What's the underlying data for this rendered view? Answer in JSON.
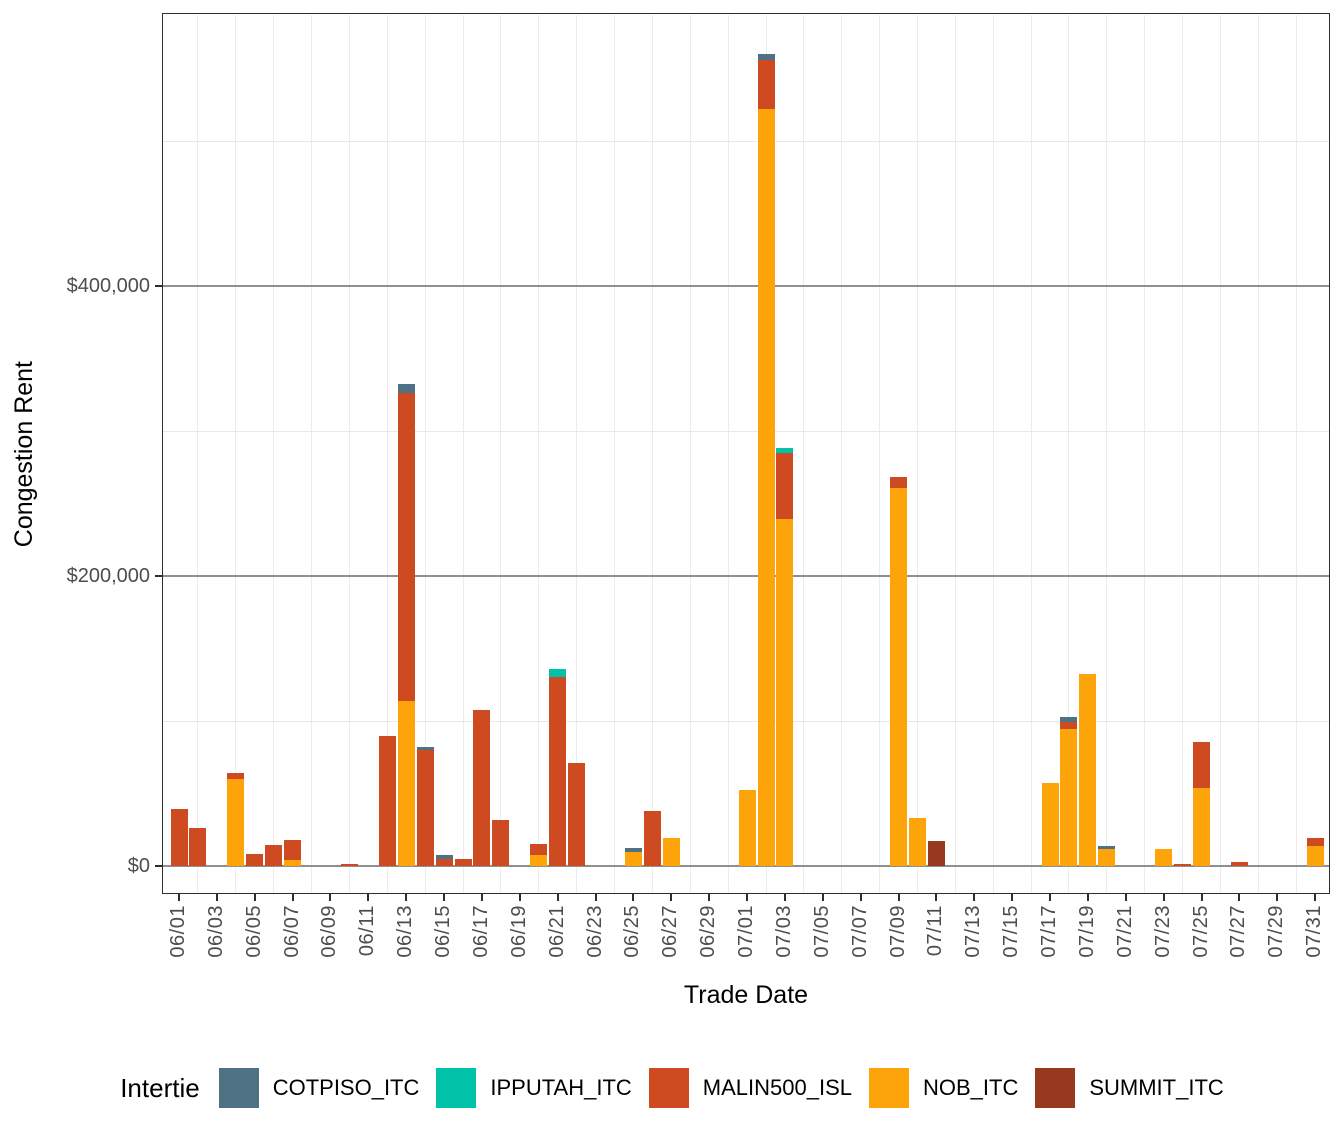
{
  "chart_data": {
    "type": "bar",
    "stacked": true,
    "xlabel": "Trade Date",
    "ylabel": "Congestion Rent",
    "legend_title": "Intertie",
    "legend_position": "bottom",
    "grid": true,
    "currency": "USD",
    "ylim": [
      0,
      587000
    ],
    "yticks": [
      {
        "value": 0,
        "label": "$0"
      },
      {
        "value": 200000,
        "label": "$200,000"
      },
      {
        "value": 400000,
        "label": "$400,000"
      }
    ],
    "y_minor_gridlines": [
      100000,
      300000,
      500000
    ],
    "series": [
      {
        "name": "COTPISO_ITC",
        "color": "#4E7284"
      },
      {
        "name": "IPPUTAH_ITC",
        "color": "#02C3A8"
      },
      {
        "name": "MALIN500_ISL",
        "color": "#CE4A21"
      },
      {
        "name": "NOB_ITC",
        "color": "#FDA40B"
      },
      {
        "name": "SUMMIT_ITC",
        "color": "#97391F"
      }
    ],
    "stack_order_bottom_to_top": [
      "SUMMIT_ITC",
      "NOB_ITC",
      "MALIN500_ISL",
      "IPPUTAH_ITC",
      "COTPISO_ITC"
    ],
    "categories": [
      "06/01",
      "06/02",
      "06/03",
      "06/04",
      "06/05",
      "06/06",
      "06/07",
      "06/08",
      "06/09",
      "06/10",
      "06/11",
      "06/12",
      "06/13",
      "06/14",
      "06/15",
      "06/16",
      "06/17",
      "06/18",
      "06/19",
      "06/20",
      "06/21",
      "06/22",
      "06/23",
      "06/24",
      "06/25",
      "06/26",
      "06/27",
      "06/28",
      "06/29",
      "06/30",
      "07/01",
      "07/02",
      "07/03",
      "07/04",
      "07/05",
      "07/06",
      "07/07",
      "07/08",
      "07/09",
      "07/10",
      "07/11",
      "07/12",
      "07/13",
      "07/14",
      "07/15",
      "07/16",
      "07/17",
      "07/18",
      "07/19",
      "07/20",
      "07/21",
      "07/22",
      "07/23",
      "07/24",
      "07/25",
      "07/26",
      "07/27",
      "07/28",
      "07/29",
      "07/30",
      "07/31"
    ],
    "x_tick_labels": [
      "06/01",
      "06/03",
      "06/05",
      "06/07",
      "06/09",
      "06/11",
      "06/13",
      "06/15",
      "06/17",
      "06/19",
      "06/21",
      "06/23",
      "06/25",
      "06/27",
      "06/29",
      "07/01",
      "07/03",
      "07/05",
      "07/07",
      "07/09",
      "07/11",
      "07/13",
      "07/15",
      "07/17",
      "07/19",
      "07/21",
      "07/23",
      "07/25",
      "07/27",
      "07/29",
      "07/31"
    ],
    "bars": [
      {
        "date": "06/01",
        "values": {
          "MALIN500_ISL": 39500
        }
      },
      {
        "date": "06/02",
        "values": {
          "MALIN500_ISL": 26500
        }
      },
      {
        "date": "06/04",
        "values": {
          "NOB_ITC": 60000,
          "MALIN500_ISL": 4000
        }
      },
      {
        "date": "06/05",
        "values": {
          "MALIN500_ISL": 8500
        }
      },
      {
        "date": "06/06",
        "values": {
          "MALIN500_ISL": 14500
        }
      },
      {
        "date": "06/07",
        "values": {
          "NOB_ITC": 4000,
          "MALIN500_ISL": 14000
        }
      },
      {
        "date": "06/10",
        "values": {
          "MALIN500_ISL": 1500
        }
      },
      {
        "date": "06/12",
        "values": {
          "MALIN500_ISL": 90000
        }
      },
      {
        "date": "06/13",
        "values": {
          "NOB_ITC": 114000,
          "MALIN500_ISL": 212500,
          "COTPISO_ITC": 6000
        }
      },
      {
        "date": "06/14",
        "values": {
          "MALIN500_ISL": 80000,
          "COTPISO_ITC": 2000
        }
      },
      {
        "date": "06/15",
        "values": {
          "MALIN500_ISL": 4500,
          "COTPISO_ITC": 3000
        }
      },
      {
        "date": "06/16",
        "values": {
          "MALIN500_ISL": 4500
        }
      },
      {
        "date": "06/17",
        "values": {
          "MALIN500_ISL": 107500
        }
      },
      {
        "date": "06/18",
        "values": {
          "MALIN500_ISL": 32000
        }
      },
      {
        "date": "06/20",
        "values": {
          "NOB_ITC": 7500,
          "MALIN500_ISL": 8000
        }
      },
      {
        "date": "06/21",
        "values": {
          "MALIN500_ISL": 130500,
          "IPPUTAH_ITC": 5500
        }
      },
      {
        "date": "06/22",
        "values": {
          "MALIN500_ISL": 71000
        }
      },
      {
        "date": "06/25",
        "values": {
          "NOB_ITC": 9500,
          "COTPISO_ITC": 3000
        }
      },
      {
        "date": "06/26",
        "values": {
          "MALIN500_ISL": 38000
        }
      },
      {
        "date": "06/27",
        "values": {
          "NOB_ITC": 19500
        }
      },
      {
        "date": "07/01",
        "values": {
          "NOB_ITC": 52500
        }
      },
      {
        "date": "07/02",
        "values": {
          "NOB_ITC": 522000,
          "MALIN500_ISL": 34000,
          "COTPISO_ITC": 4000
        }
      },
      {
        "date": "07/03",
        "values": {
          "NOB_ITC": 239000,
          "MALIN500_ISL": 45500,
          "IPPUTAH_ITC": 3500
        }
      },
      {
        "date": "07/09",
        "values": {
          "NOB_ITC": 261000,
          "MALIN500_ISL": 7000
        }
      },
      {
        "date": "07/10",
        "values": {
          "NOB_ITC": 33000
        }
      },
      {
        "date": "07/11",
        "values": {
          "SUMMIT_ITC": 17000
        }
      },
      {
        "date": "07/17",
        "values": {
          "NOB_ITC": 57500
        }
      },
      {
        "date": "07/18",
        "values": {
          "NOB_ITC": 94500,
          "MALIN500_ISL": 5000,
          "COTPISO_ITC": 3000
        }
      },
      {
        "date": "07/19",
        "values": {
          "NOB_ITC": 132500
        }
      },
      {
        "date": "07/20",
        "values": {
          "NOB_ITC": 12000,
          "COTPISO_ITC": 2000
        }
      },
      {
        "date": "07/23",
        "values": {
          "NOB_ITC": 12000
        }
      },
      {
        "date": "07/24",
        "values": {
          "MALIN500_ISL": 1500
        }
      },
      {
        "date": "07/25",
        "values": {
          "NOB_ITC": 54000,
          "MALIN500_ISL": 31500
        }
      },
      {
        "date": "07/27",
        "values": {
          "MALIN500_ISL": 2500
        }
      },
      {
        "date": "07/31",
        "values": {
          "NOB_ITC": 14000,
          "MALIN500_ISL": 5000
        }
      }
    ]
  }
}
